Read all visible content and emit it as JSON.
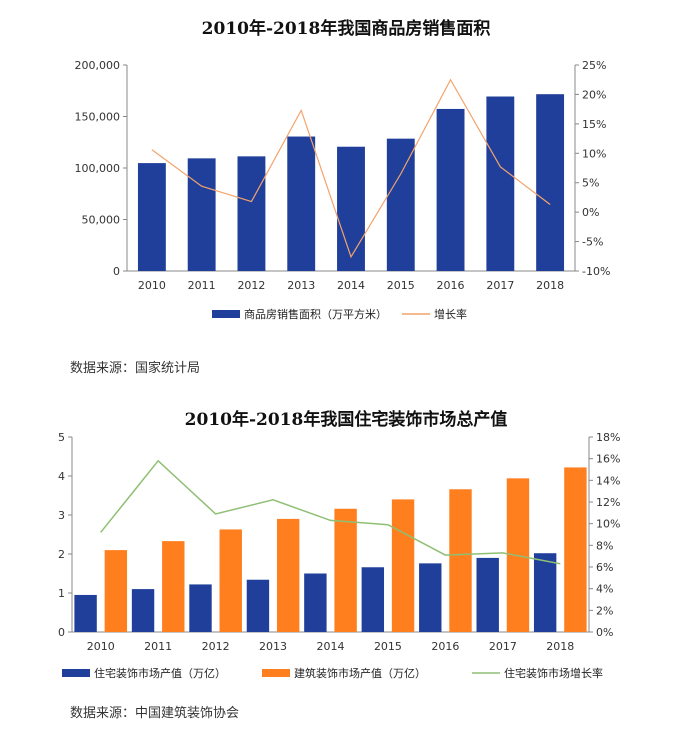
{
  "chart_data": [
    {
      "type": "bar+line",
      "title": "2010年-2018年我国商品房销售面积",
      "categories": [
        "2010",
        "2011",
        "2012",
        "2013",
        "2014",
        "2015",
        "2016",
        "2017",
        "2018"
      ],
      "series": [
        {
          "name": "商品房销售面积（万平方米）",
          "kind": "bar",
          "axis": "left",
          "color": "#1f3f9a",
          "values": [
            104765,
            109367,
            111304,
            130551,
            120649,
            128495,
            157349,
            169408,
            171654
          ]
        },
        {
          "name": "增长率",
          "kind": "line",
          "axis": "right",
          "color": "#f4a36c",
          "values": [
            10.6,
            4.4,
            1.8,
            17.3,
            -7.6,
            6.5,
            22.5,
            7.7,
            1.3
          ]
        }
      ],
      "left_axis": {
        "min": 0,
        "max": 200000,
        "ticks": [
          "0",
          "50,000",
          "100,000",
          "150,000",
          "200,000"
        ],
        "tick_values": [
          0,
          50000,
          100000,
          150000,
          200000
        ]
      },
      "right_axis": {
        "min": -10,
        "max": 25,
        "ticks": [
          "-10%",
          "-5%",
          "0%",
          "5%",
          "10%",
          "15%",
          "20%",
          "25%"
        ],
        "tick_values": [
          -10,
          -5,
          0,
          5,
          10,
          15,
          20,
          25
        ]
      },
      "legend_position": "bottom"
    },
    {
      "type": "bar+line",
      "title": "2010年-2018年我国住宅装饰市场总产值",
      "categories": [
        "2010",
        "2011",
        "2012",
        "2013",
        "2014",
        "2015",
        "2016",
        "2017",
        "2018"
      ],
      "series": [
        {
          "name": "住宅装饰市场产值（万亿）",
          "kind": "bar",
          "axis": "left",
          "color": "#1f3f9a",
          "values": [
            0.95,
            1.1,
            1.22,
            1.34,
            1.5,
            1.66,
            1.76,
            1.9,
            2.02
          ]
        },
        {
          "name": "建筑装饰市场产值（万亿）",
          "kind": "bar",
          "axis": "left",
          "color": "#ff7f1e",
          "values": [
            2.1,
            2.33,
            2.63,
            2.9,
            3.16,
            3.4,
            3.66,
            3.94,
            4.22
          ]
        },
        {
          "name": "住宅装饰市场增长率",
          "kind": "line",
          "axis": "right",
          "color": "#8fbf73",
          "values": [
            9.2,
            15.8,
            10.9,
            12.2,
            10.3,
            9.9,
            7.1,
            7.3,
            6.3
          ]
        }
      ],
      "left_axis": {
        "min": 0,
        "max": 5,
        "ticks": [
          "0",
          "1",
          "2",
          "3",
          "4",
          "5"
        ],
        "tick_values": [
          0,
          1,
          2,
          3,
          4,
          5
        ]
      },
      "right_axis": {
        "min": 0,
        "max": 18,
        "ticks": [
          "0%",
          "2%",
          "4%",
          "6%",
          "8%",
          "10%",
          "12%",
          "14%",
          "16%",
          "18%"
        ],
        "tick_values": [
          0,
          2,
          4,
          6,
          8,
          10,
          12,
          14,
          16,
          18
        ]
      },
      "legend_position": "bottom"
    }
  ],
  "sources": {
    "source1": "数据来源：国家统计局",
    "source2": "数据来源：中国建筑装饰协会"
  }
}
